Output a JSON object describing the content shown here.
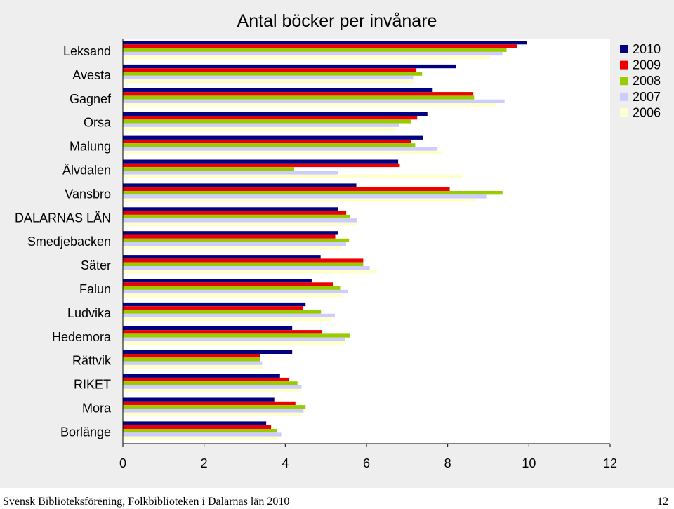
{
  "chart_data": {
    "type": "bar",
    "orientation": "horizontal",
    "title": "Antal böcker per invånare",
    "categories": [
      "Leksand",
      "Avesta",
      "Gagnef",
      "Orsa",
      "Malung",
      "Älvdalen",
      "Vansbro",
      "DALARNAS LÄN",
      "Smedjebacken",
      "Säter",
      "Falun",
      "Ludvika",
      "Hedemora",
      "Rättvik",
      "RIKET",
      "Mora",
      "Borlänge"
    ],
    "series": [
      {
        "name": "2010",
        "color": "#000080",
        "values": [
          9.95,
          8.2,
          7.63,
          7.5,
          7.4,
          6.78,
          5.75,
          5.3,
          5.3,
          4.87,
          4.65,
          4.5,
          4.17,
          4.17,
          3.87,
          3.73,
          3.53
        ]
      },
      {
        "name": "2009",
        "color": "#ee0000",
        "values": [
          9.7,
          7.23,
          8.63,
          7.25,
          7.1,
          6.82,
          8.05,
          5.5,
          5.23,
          5.92,
          5.18,
          4.43,
          4.9,
          3.38,
          4.1,
          4.25,
          3.65
        ]
      },
      {
        "name": "2008",
        "color": "#99cc00",
        "values": [
          9.45,
          7.37,
          8.65,
          7.1,
          7.2,
          4.22,
          9.35,
          5.6,
          5.57,
          5.92,
          5.35,
          4.88,
          5.6,
          3.38,
          4.3,
          4.5,
          3.8
        ]
      },
      {
        "name": "2007",
        "color": "#ccccff",
        "values": [
          9.35,
          7.15,
          9.4,
          6.8,
          7.75,
          5.3,
          8.95,
          5.77,
          5.5,
          6.08,
          5.55,
          5.22,
          5.48,
          3.43,
          4.4,
          4.45,
          3.9
        ]
      },
      {
        "name": "2006",
        "color": "#ffffcc",
        "values": [
          9.05,
          7.15,
          9.2,
          6.72,
          7.85,
          8.35,
          8.7,
          5.77,
          5.4,
          6.25,
          5.42,
          5.15,
          5.48,
          3.43,
          4.38,
          4.4,
          3.82
        ]
      }
    ],
    "xlim": [
      0,
      12
    ],
    "xticks": [
      "0",
      "2",
      "4",
      "6",
      "8",
      "10",
      "12"
    ],
    "legend_position": "top-right",
    "grid": false
  },
  "footer": {
    "left": "Svensk Biblioteksförening, Folkbiblioteken i Dalarnas län 2010",
    "page_number": "12"
  }
}
